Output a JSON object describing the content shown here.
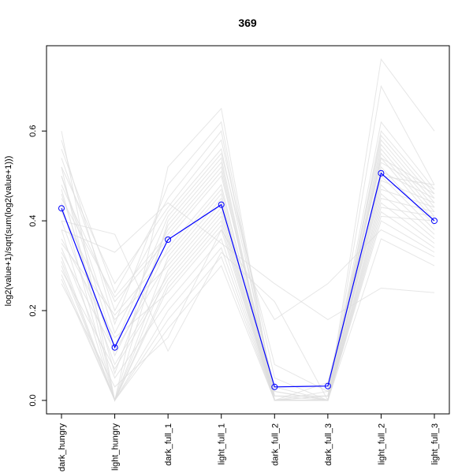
{
  "chart_data": {
    "type": "line",
    "title": "369",
    "xlabel": "",
    "ylabel": "log2(value+1)/sqrt(sum(log2(value+1)))",
    "categories": [
      "dark_hungry",
      "light_hungry",
      "dark_full_1",
      "light_full_1",
      "dark_full_2",
      "dark_full_3",
      "light_full_2",
      "light_full_3"
    ],
    "ylim": [
      -0.03,
      0.79
    ],
    "yticks": [
      0.0,
      0.2,
      0.4,
      0.6
    ],
    "ytick_labels": [
      "0.0",
      "0.2",
      "0.4",
      "0.6"
    ],
    "colors": {
      "highlight": "#0000ff",
      "background": "#dddddd"
    },
    "series": [
      {
        "highlight": true,
        "values": [
          0.428,
          0.118,
          0.358,
          0.436,
          0.03,
          0.032,
          0.506,
          0.4
        ]
      },
      {
        "values": [
          0.6,
          0.0,
          0.52,
          0.65,
          0.0,
          0.0,
          0.76,
          0.6
        ]
      },
      {
        "values": [
          0.58,
          0.17,
          0.48,
          0.62,
          0.01,
          0.0,
          0.7,
          0.48
        ]
      },
      {
        "values": [
          0.56,
          0.24,
          0.45,
          0.6,
          0.0,
          0.01,
          0.62,
          0.47
        ]
      },
      {
        "values": [
          0.54,
          0.2,
          0.42,
          0.56,
          0.02,
          0.0,
          0.6,
          0.46
        ]
      },
      {
        "values": [
          0.52,
          0.0,
          0.4,
          0.54,
          0.0,
          0.0,
          0.59,
          0.45
        ]
      },
      {
        "values": [
          0.5,
          0.15,
          0.38,
          0.52,
          0.0,
          0.02,
          0.58,
          0.44
        ]
      },
      {
        "values": [
          0.48,
          0.22,
          0.36,
          0.5,
          0.03,
          0.0,
          0.57,
          0.43
        ]
      },
      {
        "values": [
          0.46,
          0.1,
          0.34,
          0.48,
          0.0,
          0.0,
          0.56,
          0.42
        ]
      },
      {
        "values": [
          0.44,
          0.0,
          0.32,
          0.46,
          0.0,
          0.0,
          0.55,
          0.41
        ]
      },
      {
        "values": [
          0.42,
          0.18,
          0.3,
          0.44,
          0.01,
          0.01,
          0.54,
          0.4
        ]
      },
      {
        "values": [
          0.4,
          0.08,
          0.28,
          0.42,
          0.0,
          0.0,
          0.52,
          0.39
        ]
      },
      {
        "values": [
          0.38,
          0.0,
          0.26,
          0.4,
          0.0,
          0.0,
          0.5,
          0.38
        ]
      },
      {
        "values": [
          0.36,
          0.14,
          0.24,
          0.38,
          0.0,
          0.0,
          0.48,
          0.37
        ]
      },
      {
        "values": [
          0.34,
          0.05,
          0.22,
          0.36,
          0.0,
          0.0,
          0.46,
          0.36
        ]
      },
      {
        "values": [
          0.32,
          0.0,
          0.2,
          0.34,
          0.0,
          0.0,
          0.44,
          0.35
        ]
      },
      {
        "values": [
          0.3,
          0.0,
          0.18,
          0.32,
          0.0,
          0.0,
          0.42,
          0.34
        ]
      },
      {
        "values": [
          0.28,
          0.0,
          0.16,
          0.3,
          0.0,
          0.0,
          0.4,
          0.33
        ]
      },
      {
        "values": [
          0.26,
          0.03,
          0.14,
          0.38,
          0.18,
          0.26,
          0.38,
          0.32
        ]
      },
      {
        "values": [
          0.4,
          0.37,
          0.11,
          0.33,
          0.22,
          0.0,
          0.36,
          0.3
        ]
      },
      {
        "values": [
          0.38,
          0.33,
          0.44,
          0.35,
          0.26,
          0.18,
          0.25,
          0.24
        ]
      },
      {
        "values": [
          0.52,
          0.26,
          0.43,
          0.58,
          0.05,
          0.0,
          0.5,
          0.48
        ]
      },
      {
        "values": [
          0.5,
          0.12,
          0.41,
          0.55,
          0.08,
          0.02,
          0.54,
          0.47
        ]
      },
      {
        "values": [
          0.47,
          0.06,
          0.39,
          0.53,
          0.0,
          0.04,
          0.53,
          0.46
        ]
      },
      {
        "values": [
          0.45,
          0.23,
          0.37,
          0.51,
          0.0,
          0.0,
          0.51,
          0.45
        ]
      },
      {
        "values": [
          0.35,
          0.19,
          0.33,
          0.47,
          0.02,
          0.0,
          0.49,
          0.44
        ]
      },
      {
        "values": [
          0.33,
          0.11,
          0.31,
          0.45,
          0.0,
          0.01,
          0.47,
          0.43
        ]
      },
      {
        "values": [
          0.31,
          0.0,
          0.29,
          0.43,
          0.0,
          0.0,
          0.45,
          0.42
        ]
      },
      {
        "values": [
          0.29,
          0.07,
          0.27,
          0.41,
          0.0,
          0.0,
          0.43,
          0.41
        ]
      },
      {
        "values": [
          0.27,
          0.0,
          0.25,
          0.39,
          0.0,
          0.0,
          0.41,
          0.4
        ]
      }
    ]
  }
}
